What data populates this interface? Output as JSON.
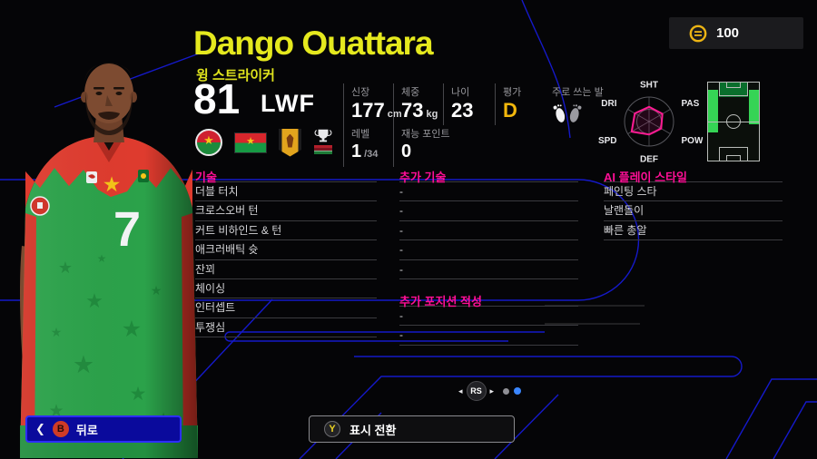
{
  "colors": {
    "accent_yellow": "#e5e91e",
    "accent_magenta": "#ff0f96",
    "accent_blue": "#1619c9",
    "grade_gold": "#f2b70c",
    "radar_pink": "#ff1b93",
    "pitch_green": "#35d455",
    "back_button_blue": "#2d2dff"
  },
  "topbar": {
    "coins": "100"
  },
  "player": {
    "name": "Dango Ouattara",
    "role": "윙 스트라이커",
    "rating": "81",
    "position": "LWF",
    "jersey_number": "7"
  },
  "stats": {
    "height": {
      "label": "신장",
      "value": "177",
      "unit": "cm"
    },
    "weight": {
      "label": "체중",
      "value": "73",
      "unit": "kg"
    },
    "age": {
      "label": "나이",
      "value": "23"
    },
    "grade": {
      "label": "평가",
      "value": "D"
    },
    "foot": {
      "label": "주로 쓰는 발"
    },
    "level": {
      "label": "레벨",
      "value": "1",
      "max": "/34"
    },
    "talent": {
      "label": "재능 포인트",
      "value": "0"
    }
  },
  "radar": {
    "type": "radar",
    "labels": [
      "SHT",
      "PAS",
      "POW",
      "DEF",
      "SPD",
      "DRI"
    ],
    "values": [
      60,
      63,
      57,
      53,
      82,
      67
    ],
    "max": 100
  },
  "sections": {
    "skills": {
      "title": "기술",
      "items": [
        "더블 터치",
        "크로스오버 턴",
        "커트 비하인드 & 턴",
        "애크러배틱 슛",
        "잔꾀",
        "체이싱",
        "인터셉트",
        "투쟁심"
      ]
    },
    "extra_skills": {
      "title": "추가 기술",
      "items": [
        "-",
        "-",
        "-",
        "-",
        "-"
      ]
    },
    "extra_positions": {
      "title": "추가 포지션 적성",
      "items": [
        "-",
        "-"
      ]
    },
    "ai_styles": {
      "title": "AI 플레이 스타일",
      "items": [
        "페인팅 스타",
        "날랜돌이",
        "빠른 총알"
      ]
    }
  },
  "carousel": {
    "stick": "RS",
    "left_arrow": "◂",
    "right_arrow": "▸"
  },
  "footer": {
    "back": {
      "key": "B",
      "label": "뒤로",
      "chevron": "❮"
    },
    "toggle": {
      "key": "Y",
      "label": "표시 전환"
    }
  }
}
